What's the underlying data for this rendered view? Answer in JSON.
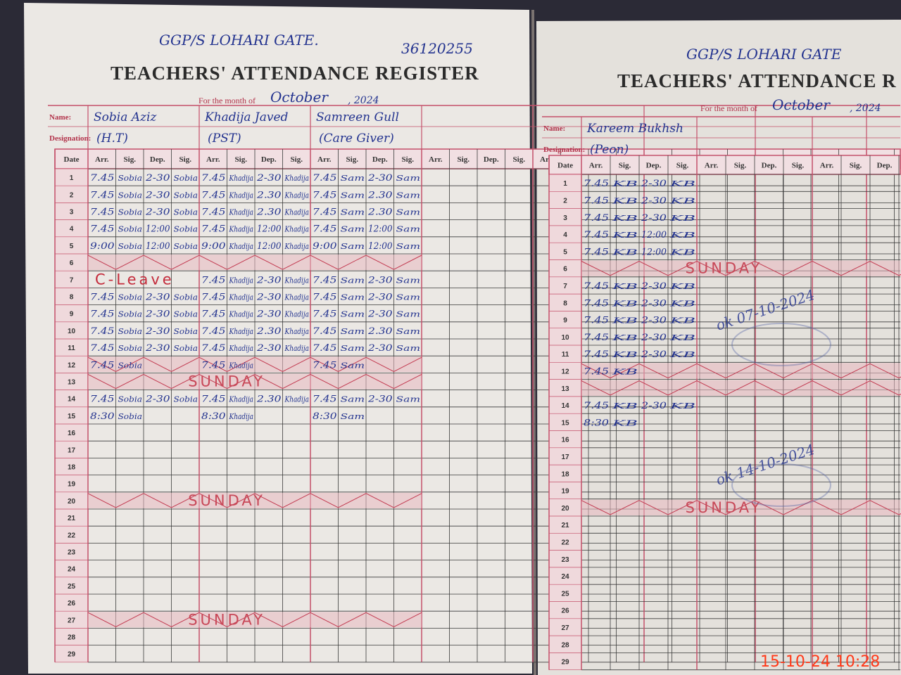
{
  "left": {
    "header": {
      "school": "GGP/S LOHARI GATE.",
      "code": "36120255",
      "title": "TEACHERS' ATTENDANCE REGISTER",
      "month_label": "For the month of",
      "month": "October",
      "year": ", 2024"
    },
    "labels": {
      "name": "Name:",
      "designation": "Designation:"
    },
    "columns": [
      "Date",
      "Arr.",
      "Sig.",
      "Dep.",
      "Sig."
    ],
    "teachers": [
      {
        "name": "Sobia Aziz",
        "designation": "(H.T)"
      },
      {
        "name": "Khadija Javed",
        "designation": "(PST)"
      },
      {
        "name": "Samreen Gull",
        "designation": "(Care Giver)"
      }
    ],
    "rows": [
      {
        "date": "1",
        "entries": {
          "0": [
            "7.45",
            "Sobia",
            "2-30",
            "Sobia"
          ],
          "1": [
            "7.45",
            "Khadija",
            "2-30",
            "Khadija"
          ],
          "2": [
            "7.45",
            "Sam",
            "2-30",
            "Sam"
          ]
        }
      },
      {
        "date": "2",
        "entries": {
          "0": [
            "7.45",
            "Sobia",
            "2-30",
            "Sobia"
          ],
          "1": [
            "7.45",
            "Khadija",
            "2.30",
            "Khadija"
          ],
          "2": [
            "7.45",
            "Sam",
            "2.30",
            "Sam"
          ]
        }
      },
      {
        "date": "3",
        "entries": {
          "0": [
            "7.45",
            "Sobia",
            "2-30",
            "Sobia"
          ],
          "1": [
            "7.45",
            "Khadija",
            "2.30",
            "Khadija"
          ],
          "2": [
            "7.45",
            "Sam",
            "2.30",
            "Sam"
          ]
        }
      },
      {
        "date": "4",
        "entries": {
          "0": [
            "7.45",
            "Sobia",
            "12:00",
            "Sobia"
          ],
          "1": [
            "7.45",
            "Khadija",
            "12:00",
            "Khadija"
          ],
          "2": [
            "7.45",
            "Sam",
            "12:00",
            "Sam"
          ]
        }
      },
      {
        "date": "5",
        "entries": {
          "0": [
            "9:00",
            "Sobia",
            "12:00",
            "Sobia"
          ],
          "1": [
            "9:00",
            "Khadija",
            "12:00",
            "Khadija"
          ],
          "2": [
            "9:00",
            "Sam",
            "12:00",
            "Sam"
          ]
        }
      },
      {
        "date": "6",
        "crossed": true
      },
      {
        "date": "7",
        "note": "C-Leave",
        "entries": {
          "1": [
            "7.45",
            "Khadija",
            "2-30",
            "Khadija"
          ],
          "2": [
            "7.45",
            "Sam",
            "2-30",
            "Sam"
          ]
        }
      },
      {
        "date": "8",
        "entries": {
          "0": [
            "7.45",
            "Sobia",
            "2-30",
            "Sobia"
          ],
          "1": [
            "7.45",
            "Khadija",
            "2-30",
            "Khadija"
          ],
          "2": [
            "7.45",
            "Sam",
            "2-30",
            "Sam"
          ]
        }
      },
      {
        "date": "9",
        "entries": {
          "0": [
            "7.45",
            "Sobia",
            "2-30",
            "Sobia"
          ],
          "1": [
            "7.45",
            "Khadija",
            "2-30",
            "Khadija"
          ],
          "2": [
            "7.45",
            "Sam",
            "2-30",
            "Sam"
          ]
        }
      },
      {
        "date": "10",
        "entries": {
          "0": [
            "7.45",
            "Sobia",
            "2-30",
            "Sobia"
          ],
          "1": [
            "7.45",
            "Khadija",
            "2.30",
            "Khadija"
          ],
          "2": [
            "7.45",
            "Sam",
            "2.30",
            "Sam"
          ]
        }
      },
      {
        "date": "11",
        "entries": {
          "0": [
            "7.45",
            "Sobia",
            "2-30",
            "Sobia"
          ],
          "1": [
            "7.45",
            "Khadija",
            "2-30",
            "Khadija"
          ],
          "2": [
            "7.45",
            "Sam",
            "2-30",
            "Sam"
          ]
        }
      },
      {
        "date": "12",
        "crossed": true,
        "entries": {
          "0": [
            "7.45",
            "Sobia"
          ],
          "1": [
            "7.45",
            "Khadija"
          ],
          "2": [
            "7.45",
            "Sam"
          ]
        }
      },
      {
        "date": "13",
        "crossed": true,
        "note": "SUNDAY"
      },
      {
        "date": "14",
        "entries": {
          "0": [
            "7.45",
            "Sobia",
            "2-30",
            "Sobia"
          ],
          "1": [
            "7.45",
            "Khadija",
            "2.30",
            "Khadija"
          ],
          "2": [
            "7.45",
            "Sam",
            "2-30",
            "Sam"
          ]
        }
      },
      {
        "date": "15",
        "entries": {
          "0": [
            "8:30",
            "Sobia"
          ],
          "1": [
            "8:30",
            "Khadija"
          ],
          "2": [
            "8:30",
            "Sam"
          ]
        }
      },
      {
        "date": "16"
      },
      {
        "date": "17"
      },
      {
        "date": "18"
      },
      {
        "date": "19"
      },
      {
        "date": "20",
        "crossed": true,
        "note": "SUNDAY"
      },
      {
        "date": "21"
      },
      {
        "date": "22"
      },
      {
        "date": "23"
      },
      {
        "date": "24"
      },
      {
        "date": "25"
      },
      {
        "date": "26"
      },
      {
        "date": "27",
        "crossed": true,
        "note": "SUNDAY"
      },
      {
        "date": "28"
      },
      {
        "date": "29"
      }
    ]
  },
  "right": {
    "header": {
      "school": "GGP/S LOHARI GATE",
      "title": "TEACHERS' ATTENDANCE R",
      "month_label": "For the month of",
      "month": "October",
      "year": ", 2024"
    },
    "teachers": [
      {
        "name": "Kareem Bukhsh",
        "designation": "(Peon)"
      }
    ],
    "rows": [
      {
        "date": "1",
        "entries": {
          "0": [
            "7.45",
            "KB",
            "2-30",
            "KB"
          ]
        }
      },
      {
        "date": "2",
        "entries": {
          "0": [
            "7.45",
            "KB",
            "2-30",
            "KB"
          ]
        }
      },
      {
        "date": "3",
        "entries": {
          "0": [
            "7.45",
            "KB",
            "2-30",
            "KB"
          ]
        }
      },
      {
        "date": "4",
        "entries": {
          "0": [
            "7.45",
            "KB",
            "12:00",
            "KB"
          ]
        }
      },
      {
        "date": "5",
        "entries": {
          "0": [
            "7.45",
            "KB",
            "12:00",
            "KB"
          ]
        }
      },
      {
        "date": "6",
        "crossed": true,
        "note": "SUNDAY"
      },
      {
        "date": "7",
        "entries": {
          "0": [
            "7.45",
            "KB",
            "2-30",
            "KB"
          ]
        }
      },
      {
        "date": "8",
        "entries": {
          "0": [
            "7.45",
            "KB",
            "2-30",
            "KB"
          ]
        }
      },
      {
        "date": "9",
        "entries": {
          "0": [
            "7.45",
            "KB",
            "2-30",
            "KB"
          ]
        }
      },
      {
        "date": "10",
        "entries": {
          "0": [
            "7.45",
            "KB",
            "2-30",
            "KB"
          ]
        }
      },
      {
        "date": "11",
        "entries": {
          "0": [
            "7.45",
            "KB",
            "2-30",
            "KB"
          ]
        }
      },
      {
        "date": "12",
        "crossed": true,
        "entries": {
          "0": [
            "7.45",
            "KB"
          ]
        }
      },
      {
        "date": "13",
        "crossed": true
      },
      {
        "date": "14",
        "entries": {
          "0": [
            "7.45",
            "KB",
            "2-30",
            "KB"
          ]
        }
      },
      {
        "date": "15",
        "entries": {
          "0": [
            "8:30",
            "KB"
          ]
        }
      },
      {
        "date": "16"
      },
      {
        "date": "17"
      },
      {
        "date": "18"
      },
      {
        "date": "19"
      },
      {
        "date": "20",
        "crossed": true,
        "note": "SUNDAY"
      },
      {
        "date": "21"
      },
      {
        "date": "22"
      },
      {
        "date": "23"
      },
      {
        "date": "24"
      },
      {
        "date": "25"
      },
      {
        "date": "26"
      },
      {
        "date": "27"
      },
      {
        "date": "28"
      },
      {
        "date": "29"
      }
    ],
    "annotations": [
      "ok 07-10-2024",
      "ok 14-10-2024"
    ]
  },
  "timestamp": "15-10-24 10:28"
}
